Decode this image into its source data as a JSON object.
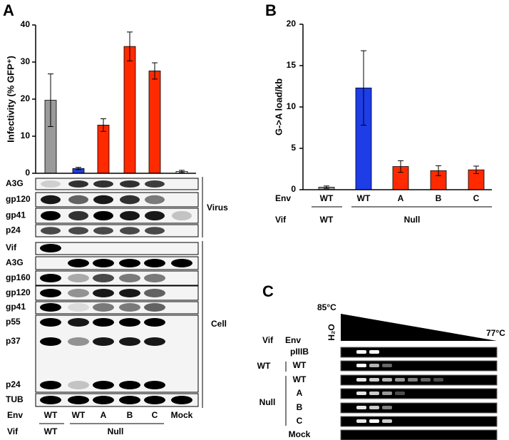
{
  "panel_labels": [
    "A",
    "B",
    "C"
  ],
  "chart_data": [
    {
      "type": "bar",
      "y_label": "Infectivity (% GFP⁺)",
      "categories": [
        "WT",
        "WT",
        "A",
        "B",
        "C",
        "Mock"
      ],
      "values": [
        19.7,
        1.3,
        13,
        34.2,
        27.6,
        0.5
      ],
      "errors": [
        7.1,
        0.3,
        1.7,
        3.9,
        2.2,
        0.3
      ],
      "colors": [
        "#9a9a9a",
        "#1e3de6",
        "#ff2a00",
        "#ff2a00",
        "#ff2a00",
        "#ffffff"
      ],
      "ylim": [
        0,
        40
      ],
      "yticks": [
        0,
        10,
        20,
        30,
        40
      ],
      "env_label": "Env",
      "vif_label": "Vif",
      "vif_groups": [
        "WT",
        "Null"
      ]
    },
    {
      "type": "bar",
      "y_label": "G->A load/kb",
      "categories": [
        "WT",
        "WT",
        "A",
        "B",
        "C"
      ],
      "values": [
        0.3,
        12.3,
        2.8,
        2.3,
        2.4
      ],
      "errors": [
        0.15,
        4.5,
        0.7,
        0.6,
        0.45
      ],
      "colors": [
        "#9a9a9a",
        "#1e3de6",
        "#ff2a00",
        "#ff2a00",
        "#ff2a00"
      ],
      "ylim": [
        0,
        20
      ],
      "yticks": [
        0,
        5,
        10,
        15,
        20
      ],
      "env_label": "Env",
      "vif_label": "Vif",
      "vif_groups": [
        "WT",
        "Null"
      ]
    }
  ],
  "blots": {
    "virus": {
      "label": "Virus",
      "rows": [
        "A3G",
        "gp120",
        "gp41",
        "p24"
      ]
    },
    "cell": {
      "label": "Cell",
      "rows": [
        "Vif",
        "A3G",
        "gp160",
        "gp120",
        "gp41",
        "p55",
        "p37",
        "p24",
        "TUB"
      ]
    }
  },
  "gel": {
    "temp_high": "85°C",
    "temp_low": "77°C",
    "water": "H₂O",
    "vif_header": "Vif",
    "env_header": "Env",
    "rows": [
      "pIIIB",
      "WT",
      "WT",
      "A",
      "B",
      "C",
      "Mock"
    ],
    "vif_groups": [
      "WT",
      "Null"
    ]
  }
}
